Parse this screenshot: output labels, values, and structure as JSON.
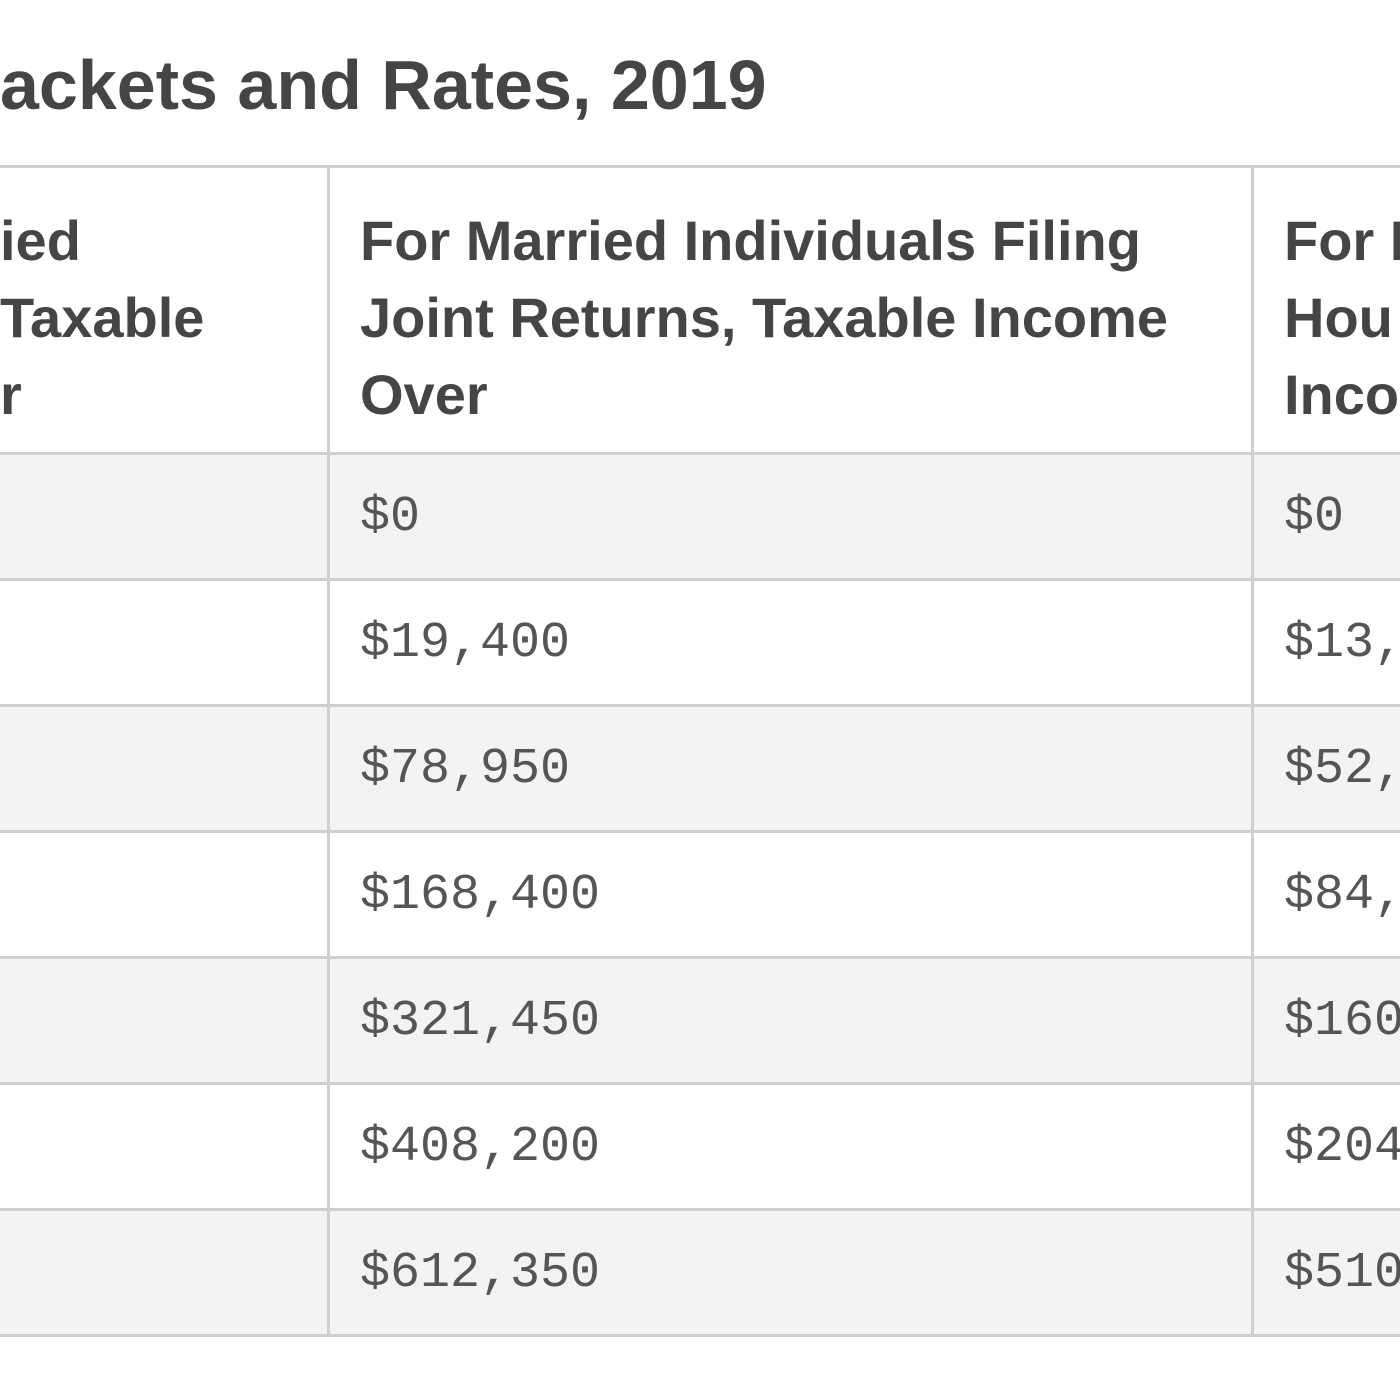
{
  "title": "ackets and Rates, 2019",
  "table": {
    "header": [
      [
        "ied",
        "Taxable",
        "r"
      ],
      [
        "For Married Individuals Filing",
        "Joint Returns, Taxable Income",
        "Over"
      ],
      [
        "For H",
        "Hou",
        "Inco"
      ]
    ],
    "rows": [
      [
        "$0",
        "$0"
      ],
      [
        "$19,400",
        "$13,"
      ],
      [
        "$78,950",
        "$52,"
      ],
      [
        "$168,400",
        "$84,"
      ],
      [
        "$321,450",
        "$160"
      ],
      [
        "$408,200",
        "$204"
      ],
      [
        "$612,350",
        "$510"
      ]
    ]
  }
}
